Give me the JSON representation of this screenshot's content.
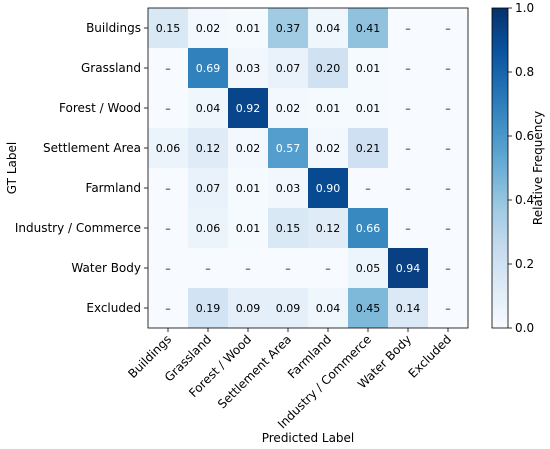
{
  "chart_data": {
    "type": "heatmap",
    "title": "",
    "xlabel": "Predicted Label",
    "ylabel": "GT Label",
    "categories_x": [
      "Buildings",
      "Grassland",
      "Forest / Wood",
      "Settlement Area",
      "Farmland",
      "Industry / Commerce",
      "Water Body",
      "Excluded"
    ],
    "categories_y": [
      "Buildings",
      "Grassland",
      "Forest / Wood",
      "Settlement Area",
      "Farmland",
      "Industry / Commerce",
      "Water Body",
      "Excluded"
    ],
    "values": [
      [
        0.15,
        0.02,
        0.01,
        0.37,
        0.04,
        0.41,
        null,
        null
      ],
      [
        null,
        0.69,
        0.03,
        0.07,
        0.2,
        0.01,
        null,
        null
      ],
      [
        null,
        0.04,
        0.92,
        0.02,
        0.01,
        0.01,
        null,
        null
      ],
      [
        0.06,
        0.12,
        0.02,
        0.57,
        0.02,
        0.21,
        null,
        null
      ],
      [
        null,
        0.07,
        0.01,
        0.03,
        0.9,
        null,
        null,
        null
      ],
      [
        null,
        0.06,
        0.01,
        0.15,
        0.12,
        0.66,
        null,
        null
      ],
      [
        null,
        null,
        null,
        null,
        null,
        0.05,
        0.94,
        null
      ],
      [
        null,
        0.19,
        0.09,
        0.09,
        0.04,
        0.45,
        0.14,
        null
      ]
    ],
    "missing_label": "–",
    "colorbar": {
      "label": "Relative Frequency",
      "min": 0.0,
      "max": 1.0,
      "ticks": [
        "0.0",
        "0.2",
        "0.4",
        "0.6",
        "0.8",
        "1.0"
      ],
      "colormap": "Blues"
    },
    "grid": false
  }
}
